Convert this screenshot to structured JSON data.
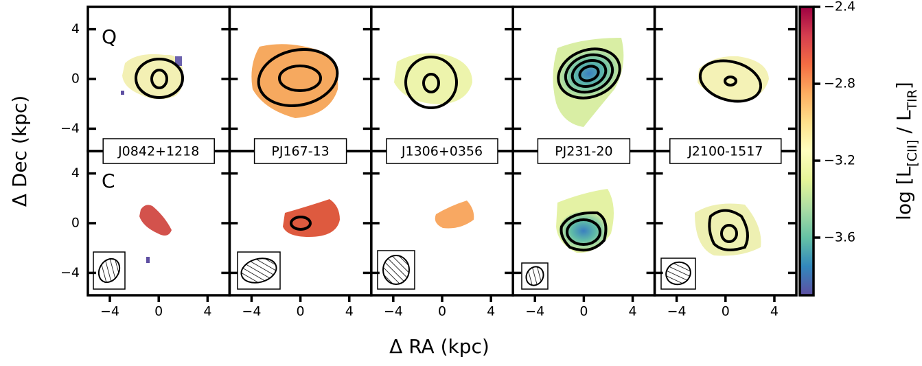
{
  "chart_data": {
    "type": "image-grid",
    "xlabel": "Δ RA (kpc)",
    "ylabel": "Δ Dec (kpc)",
    "row_labels": [
      "Q",
      "C"
    ],
    "columns": [
      "J0842+1218",
      "PJ167-13",
      "J1306+0356",
      "PJ231-20",
      "J2100-1517"
    ],
    "xlim": [
      -5.8,
      5.8
    ],
    "ylim": [
      -5.8,
      5.8
    ],
    "xticks": [
      {
        "value": -4,
        "label": "−4"
      },
      0,
      4
    ],
    "yticks": [
      {
        "value": -4,
        "label": "−4"
      },
      0,
      4
    ],
    "colorbar_label_parts": [
      "log [L",
      "[CII]",
      " / L",
      "TIR",
      "]"
    ],
    "clim": [
      -3.9,
      -2.4
    ],
    "cticks": [
      {
        "value": -2.4,
        "label": "−2.4"
      },
      {
        "value": -2.8,
        "label": "−2.8"
      },
      {
        "value": -3.2,
        "label": "−3.2"
      },
      {
        "value": -3.6,
        "label": "−3.6"
      }
    ]
  }
}
